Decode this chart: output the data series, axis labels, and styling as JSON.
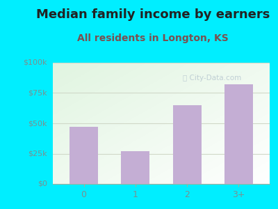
{
  "title": "Median family income by earners",
  "subtitle": "All residents in Longton, KS",
  "categories": [
    "0",
    "1",
    "2",
    "3+"
  ],
  "values": [
    47000,
    27000,
    65000,
    82000
  ],
  "bar_color": "#c4aed4",
  "background_outer": "#00eeff",
  "ylim": [
    0,
    100000
  ],
  "yticks": [
    0,
    25000,
    50000,
    75000,
    100000
  ],
  "ytick_labels": [
    "$0",
    "$25k",
    "$50k",
    "$75k",
    "$100k"
  ],
  "title_fontsize": 13,
  "subtitle_fontsize": 10,
  "title_color": "#222222",
  "subtitle_color": "#7a5050",
  "tick_color": "#7a9090",
  "watermark": "ⓘ City-Data.com",
  "watermark_color": "#b8c8d0",
  "grid_color": "#d0d8c8"
}
